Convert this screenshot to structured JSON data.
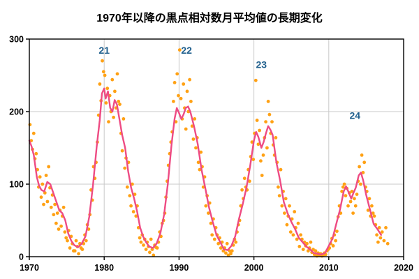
{
  "chart_data": {
    "type": "scatter",
    "title": "1970年以降の黒点相対数月平均値の長期変化",
    "xlabel": "",
    "ylabel": "",
    "xlim": [
      1970,
      2020
    ],
    "ylim": [
      0,
      300
    ],
    "xticks": [
      1970,
      1980,
      1990,
      2000,
      2010,
      2020
    ],
    "yticks": [
      0,
      100,
      200,
      300
    ],
    "grid": true,
    "legend": "none",
    "colors": {
      "scatter": "#FFA114",
      "line": "#EE4B83",
      "grid": "#C9C9C9",
      "axis": "#000000",
      "cycle_label": "#22618E",
      "background": "#FFFFFF"
    },
    "annotations": [
      {
        "label": "21",
        "x": 1980.0,
        "y": 280
      },
      {
        "label": "22",
        "x": 1991.0,
        "y": 280
      },
      {
        "label": "23",
        "x": 2001.0,
        "y": 260
      },
      {
        "label": "24",
        "x": 2013.5,
        "y": 190
      }
    ],
    "series": [
      {
        "name": "monthly-mean-sunspot-number",
        "type": "scatter",
        "points_by_year": {
          "1970": [
            182,
            160,
            148,
            170,
            135,
            142
          ],
          "1971": [
            120,
            96,
            110,
            82,
            100,
            72
          ],
          "1972": [
            88,
            112,
            76,
            124,
            95,
            68
          ],
          "1973": [
            85,
            58,
            72,
            46,
            60,
            38
          ],
          "1974": [
            64,
            42,
            56,
            68,
            34,
            26
          ],
          "1975": [
            22,
            36,
            12,
            28,
            18,
            8
          ],
          "1976": [
            8,
            22,
            14,
            4,
            18,
            12
          ],
          "1977": [
            10,
            18,
            30,
            22,
            44,
            38
          ],
          "1978": [
            58,
            92,
            78,
            124,
            108,
            130
          ],
          "1979": [
            158,
            195,
            238,
            215,
            270,
            255
          ],
          "1980": [
            250,
            212,
            232,
            186,
            222,
            200
          ],
          "1981": [
            244,
            192,
            228,
            205,
            252,
            214
          ],
          "1982": [
            210,
            170,
            146,
            190,
            122,
            136
          ],
          "1983": [
            96,
            130,
            84,
            70,
            100,
            62
          ],
          "1984": [
            86,
            56,
            70,
            40,
            26,
            20
          ],
          "1985": [
            30,
            16,
            24,
            10,
            20,
            14
          ],
          "1986": [
            6,
            24,
            10,
            2,
            16,
            13
          ],
          "1987": [
            12,
            20,
            34,
            28,
            46,
            50
          ],
          "1988": [
            60,
            82,
            104,
            126,
            142,
            158
          ],
          "1989": [
            172,
            214,
            240,
            186,
            252,
            222
          ],
          "1990": [
            285,
            218,
            190,
            238,
            205,
            176
          ],
          "1991": [
            228,
            200,
            244,
            214,
            180,
            162
          ],
          "1992": [
            190,
            150,
            164,
            130,
            120,
            144
          ],
          "1993": [
            124,
            96,
            110,
            70,
            84,
            60
          ],
          "1994": [
            74,
            46,
            30,
            52,
            24,
            40
          ],
          "1995": [
            30,
            18,
            26,
            12,
            20,
            8
          ],
          "1996": [
            12,
            5,
            18,
            2,
            8,
            4
          ],
          "1997": [
            8,
            16,
            24,
            20,
            34,
            44
          ],
          "1998": [
            50,
            70,
            92,
            80,
            108,
            96
          ],
          "1999": [
            92,
            120,
            104,
            138,
            158,
            134
          ],
          "2000": [
            170,
            243,
            188,
            155,
            174,
            132
          ],
          "2001": [
            112,
            140,
            164,
            186,
            150,
            214
          ],
          "2002": [
            196,
            170,
            186,
            154,
            140,
            164
          ],
          "2003": [
            130,
            96,
            84,
            120,
            70,
            90
          ],
          "2004": [
            60,
            80,
            44,
            56,
            70,
            34
          ],
          "2005": [
            52,
            30,
            62,
            40,
            24,
            46
          ],
          "2006": [
            14,
            30,
            24,
            10,
            20,
            15
          ],
          "2007": [
            18,
            8,
            12,
            20,
            6,
            10
          ],
          "2008": [
            3,
            8,
            1,
            5,
            2,
            4
          ],
          "2009": [
            1,
            2,
            5,
            3,
            8,
            10
          ],
          "2010": [
            12,
            18,
            25,
            15,
            30,
            22
          ],
          "2011": [
            35,
            55,
            70,
            60,
            90,
            96
          ],
          "2012": [
            100,
            84,
            94,
            70,
            88,
            76
          ],
          "2013": [
            90,
            60,
            80,
            70,
            86,
            104
          ],
          "2014": [
            124,
            100,
            140,
            116,
            130,
            96
          ],
          "2015": [
            90,
            64,
            80,
            56,
            70,
            60
          ],
          "2016": [
            56,
            44,
            30,
            20,
            40,
            26
          ],
          "2017": [
            34,
            22,
            40,
            18
          ]
        }
      },
      {
        "name": "smoothed-sunspot-number",
        "type": "line",
        "points": [
          [
            1970.0,
            160
          ],
          [
            1970.3,
            152
          ],
          [
            1970.6,
            140
          ],
          [
            1971.0,
            110
          ],
          [
            1971.3,
            98
          ],
          [
            1971.6,
            92
          ],
          [
            1972.0,
            90
          ],
          [
            1972.4,
            103
          ],
          [
            1972.8,
            100
          ],
          [
            1973.2,
            88
          ],
          [
            1973.6,
            76
          ],
          [
            1974.0,
            64
          ],
          [
            1974.4,
            60
          ],
          [
            1974.8,
            50
          ],
          [
            1975.2,
            32
          ],
          [
            1975.6,
            22
          ],
          [
            1976.0,
            16
          ],
          [
            1976.5,
            13
          ],
          [
            1977.0,
            18
          ],
          [
            1977.5,
            28
          ],
          [
            1978.0,
            55
          ],
          [
            1978.5,
            98
          ],
          [
            1979.0,
            152
          ],
          [
            1979.4,
            188
          ],
          [
            1979.7,
            225
          ],
          [
            1980.0,
            232
          ],
          [
            1980.2,
            218
          ],
          [
            1980.5,
            228
          ],
          [
            1980.8,
            205
          ],
          [
            1981.1,
            200
          ],
          [
            1981.4,
            216
          ],
          [
            1981.7,
            210
          ],
          [
            1982.0,
            192
          ],
          [
            1982.4,
            168
          ],
          [
            1982.8,
            150
          ],
          [
            1983.2,
            118
          ],
          [
            1983.6,
            95
          ],
          [
            1984.0,
            80
          ],
          [
            1984.4,
            62
          ],
          [
            1984.8,
            40
          ],
          [
            1985.2,
            28
          ],
          [
            1985.6,
            20
          ],
          [
            1986.0,
            14
          ],
          [
            1986.5,
            12
          ],
          [
            1987.0,
            18
          ],
          [
            1987.5,
            32
          ],
          [
            1988.0,
            58
          ],
          [
            1988.5,
            100
          ],
          [
            1989.0,
            155
          ],
          [
            1989.4,
            190
          ],
          [
            1989.7,
            205
          ],
          [
            1990.0,
            198
          ],
          [
            1990.3,
            190
          ],
          [
            1990.6,
            196
          ],
          [
            1990.9,
            205
          ],
          [
            1991.2,
            207
          ],
          [
            1991.5,
            200
          ],
          [
            1992.0,
            180
          ],
          [
            1992.5,
            155
          ],
          [
            1993.0,
            120
          ],
          [
            1993.5,
            95
          ],
          [
            1994.0,
            68
          ],
          [
            1994.5,
            48
          ],
          [
            1995.0,
            30
          ],
          [
            1995.5,
            20
          ],
          [
            1996.0,
            10
          ],
          [
            1996.5,
            9
          ],
          [
            1997.0,
            15
          ],
          [
            1997.5,
            28
          ],
          [
            1998.0,
            52
          ],
          [
            1998.5,
            72
          ],
          [
            1999.0,
            95
          ],
          [
            1999.5,
            125
          ],
          [
            2000.0,
            160
          ],
          [
            2000.3,
            172
          ],
          [
            2000.6,
            165
          ],
          [
            2001.0,
            150
          ],
          [
            2001.3,
            158
          ],
          [
            2001.6,
            170
          ],
          [
            2001.9,
            180
          ],
          [
            2002.2,
            175
          ],
          [
            2002.5,
            168
          ],
          [
            2003.0,
            130
          ],
          [
            2003.5,
            105
          ],
          [
            2004.0,
            75
          ],
          [
            2004.5,
            60
          ],
          [
            2005.0,
            48
          ],
          [
            2005.5,
            38
          ],
          [
            2006.0,
            26
          ],
          [
            2006.5,
            20
          ],
          [
            2007.0,
            14
          ],
          [
            2007.5,
            10
          ],
          [
            2008.0,
            5
          ],
          [
            2008.5,
            4
          ],
          [
            2009.0,
            3
          ],
          [
            2009.5,
            5
          ],
          [
            2010.0,
            15
          ],
          [
            2010.5,
            25
          ],
          [
            2011.0,
            45
          ],
          [
            2011.5,
            65
          ],
          [
            2012.0,
            90
          ],
          [
            2012.3,
            97
          ],
          [
            2012.6,
            90
          ],
          [
            2013.0,
            80
          ],
          [
            2013.3,
            88
          ],
          [
            2013.6,
            95
          ],
          [
            2014.0,
            112
          ],
          [
            2014.3,
            116
          ],
          [
            2014.6,
            105
          ],
          [
            2015.0,
            85
          ],
          [
            2015.5,
            65
          ],
          [
            2016.0,
            45
          ],
          [
            2016.5,
            38
          ],
          [
            2017.0,
            30
          ]
        ]
      }
    ]
  }
}
